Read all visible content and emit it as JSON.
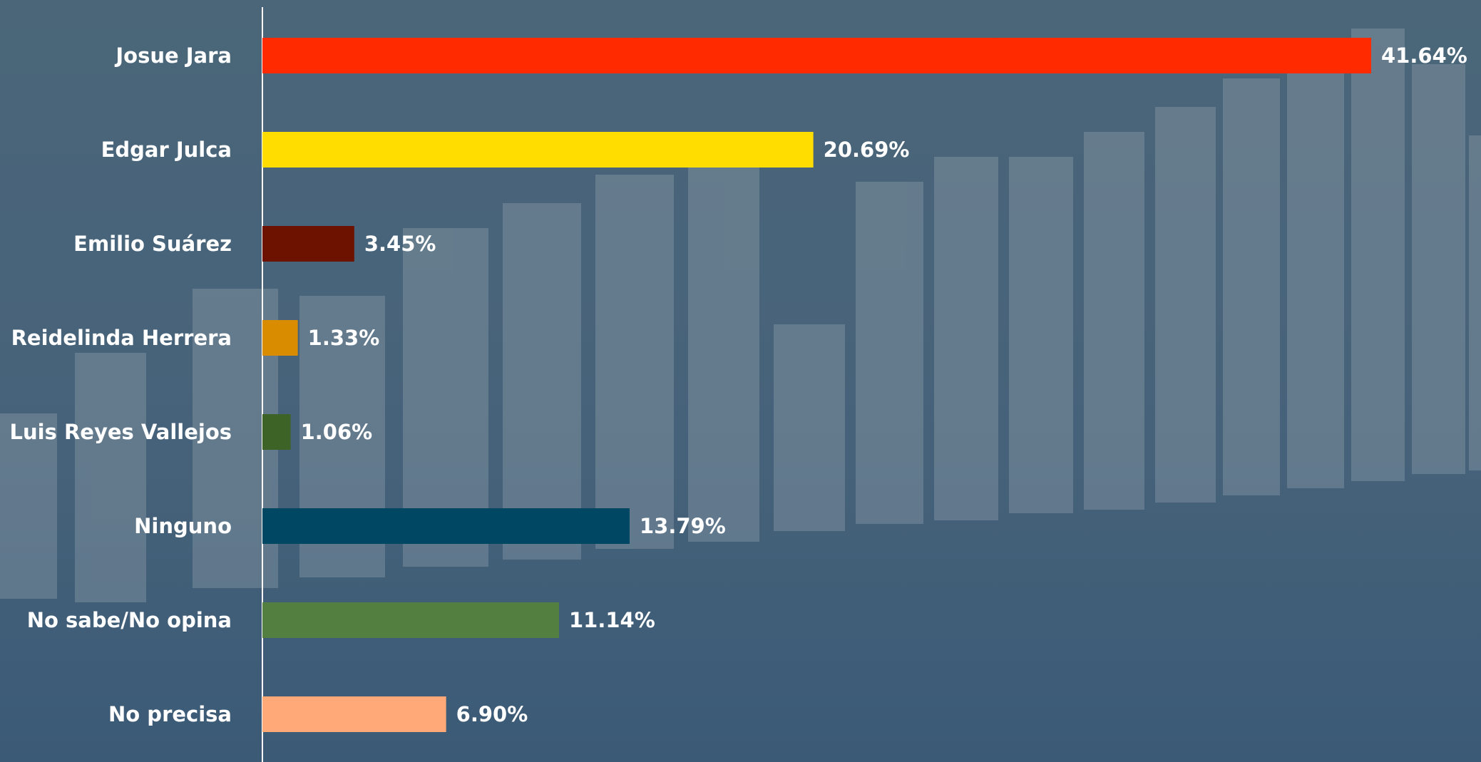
{
  "chart_data": {
    "type": "bar",
    "orientation": "horizontal",
    "categories": [
      "Josue Jara",
      "Edgar Julca",
      "Emilio Suárez",
      "Reidelinda Herrera",
      "Luis Reyes Vallejos",
      "Ninguno",
      "No sabe/No opina",
      "No precisa"
    ],
    "values": [
      41.64,
      20.69,
      3.45,
      1.33,
      1.06,
      13.79,
      11.14,
      6.9
    ],
    "value_labels": [
      "41.64%",
      "20.69%",
      "3.45%",
      "1.33%",
      "1.06%",
      "13.79%",
      "11.14%",
      "6.90%"
    ],
    "colors": [
      "#ff2a00",
      "#ffdd00",
      "#6e1200",
      "#d98c00",
      "#3d6426",
      "#004763",
      "#537f40",
      "#ffa878"
    ]
  }
}
